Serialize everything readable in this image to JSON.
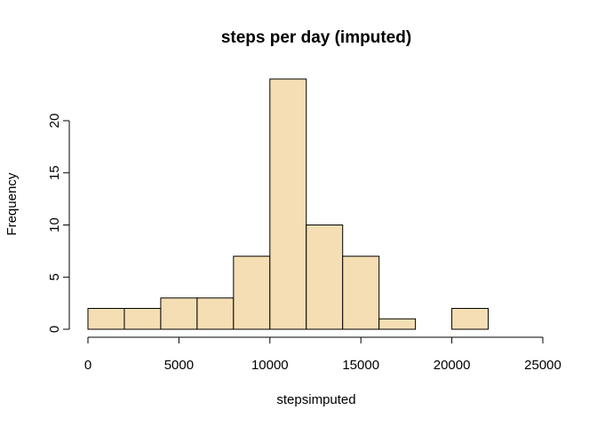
{
  "chart_data": {
    "type": "bar",
    "title": "steps per day (imputed)",
    "xlabel": "stepsimputed",
    "ylabel": "Frequency",
    "bar_color": "#f5deb3",
    "bin_edges": [
      0,
      2000,
      4000,
      6000,
      8000,
      10000,
      12000,
      14000,
      16000,
      18000,
      20000,
      22000
    ],
    "values": [
      2,
      2,
      3,
      3,
      7,
      24,
      10,
      7,
      1,
      0,
      2
    ],
    "xlim": [
      0,
      25000
    ],
    "ylim": [
      0,
      24
    ],
    "xticks": [
      0,
      5000,
      10000,
      15000,
      20000,
      25000
    ],
    "yticks": [
      0,
      5,
      10,
      15,
      20
    ],
    "grid": false
  }
}
